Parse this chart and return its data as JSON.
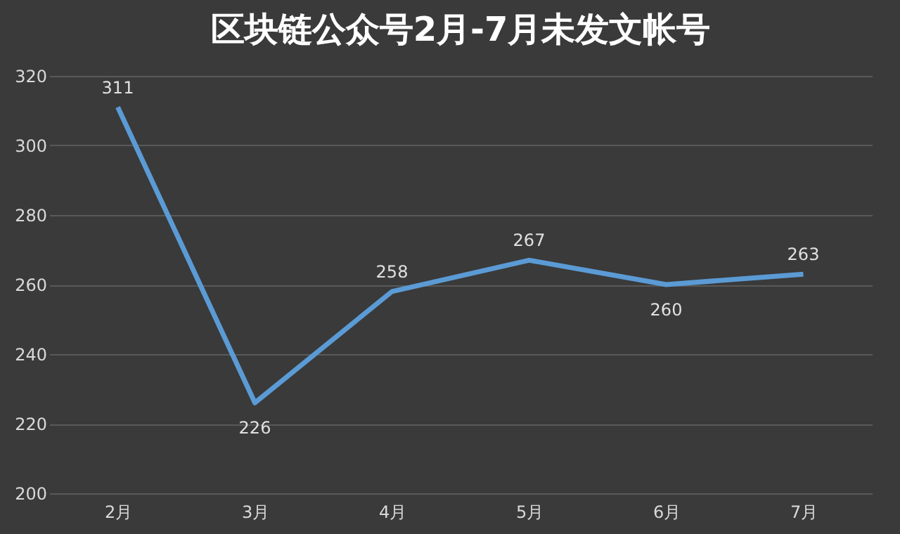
{
  "chart_data": {
    "type": "line",
    "title": "区块链公众号2月-7月未发文帐号",
    "categories": [
      "2月",
      "3月",
      "4月",
      "5月",
      "6月",
      "7月"
    ],
    "series": [
      {
        "color": "#5b9bd5",
        "values": [
          311,
          226,
          258,
          267,
          260,
          263
        ]
      }
    ],
    "ylim": [
      200,
      320
    ],
    "yticks": [
      200,
      220,
      240,
      260,
      280,
      300,
      320
    ],
    "grid": "y",
    "data_labels": true,
    "marker": "none",
    "line_style": "solid"
  }
}
